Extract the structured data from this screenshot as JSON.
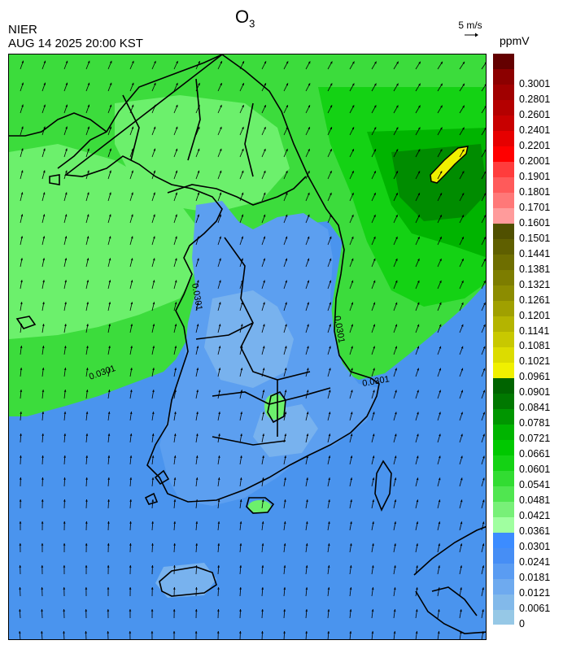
{
  "header": {
    "title": "O",
    "title_sub": "3",
    "agency": "NIER",
    "timestamp": "AUG 14 2025 20:00 KST",
    "wind_reference": "5 m/s",
    "unit": "ppmV"
  },
  "legend": {
    "bins": [
      {
        "color": "#96c8e6",
        "label": "0"
      },
      {
        "color": "#82b9ea",
        "label": "0.0061"
      },
      {
        "color": "#6eaaef",
        "label": "0.0121"
      },
      {
        "color": "#5a9cf2",
        "label": "0.0181"
      },
      {
        "color": "#468ef5",
        "label": "0.0241"
      },
      {
        "color": "#3c8cff",
        "label": "0.0301"
      },
      {
        "color": "#a0ffa0",
        "label": "0.0361"
      },
      {
        "color": "#78f078",
        "label": "0.0421"
      },
      {
        "color": "#50e650",
        "label": "0.0481"
      },
      {
        "color": "#32dc32",
        "label": "0.0541"
      },
      {
        "color": "#14d214",
        "label": "0.0601"
      },
      {
        "color": "#00c800",
        "label": "0.0661"
      },
      {
        "color": "#00b400",
        "label": "0.0721"
      },
      {
        "color": "#009600",
        "label": "0.0781"
      },
      {
        "color": "#007800",
        "label": "0.0841"
      },
      {
        "color": "#006400",
        "label": "0.0901"
      },
      {
        "color": "#f0f000",
        "label": "0.0961"
      },
      {
        "color": "#dcdc00",
        "label": "0.1021"
      },
      {
        "color": "#c8c800",
        "label": "0.1081"
      },
      {
        "color": "#b4b400",
        "label": "0.1141"
      },
      {
        "color": "#a0a000",
        "label": "0.1201"
      },
      {
        "color": "#8c8c00",
        "label": "0.1261"
      },
      {
        "color": "#7d7d00",
        "label": "0.1321"
      },
      {
        "color": "#6e6e00",
        "label": "0.1381"
      },
      {
        "color": "#5f5f00",
        "label": "0.1441"
      },
      {
        "color": "#505000",
        "label": "0.1501"
      },
      {
        "color": "#ff9b9b",
        "label": "0.1601"
      },
      {
        "color": "#ff7878",
        "label": "0.1701"
      },
      {
        "color": "#ff5a5a",
        "label": "0.1801"
      },
      {
        "color": "#ff3c3c",
        "label": "0.1901"
      },
      {
        "color": "#ff0000",
        "label": "0.2001"
      },
      {
        "color": "#e60000",
        "label": "0.2201"
      },
      {
        "color": "#c80000",
        "label": "0.2401"
      },
      {
        "color": "#b40000",
        "label": "0.2601"
      },
      {
        "color": "#a00000",
        "label": "0.2801"
      },
      {
        "color": "#8c0000",
        "label": "0.3001"
      },
      {
        "color": "#640000",
        "label": ""
      }
    ]
  },
  "map": {
    "contour_label": "0.0301",
    "colors": {
      "sea_blue": "#4a94ee",
      "land_blue": "#5c9ff0",
      "low_blue": "#78b2ee",
      "green_light": "#6cf06c",
      "green": "#3cdc3c",
      "green_mid": "#14d214",
      "green_dark": "#00b400",
      "green_darkest": "#008c00",
      "yellow": "#f0f000"
    }
  }
}
